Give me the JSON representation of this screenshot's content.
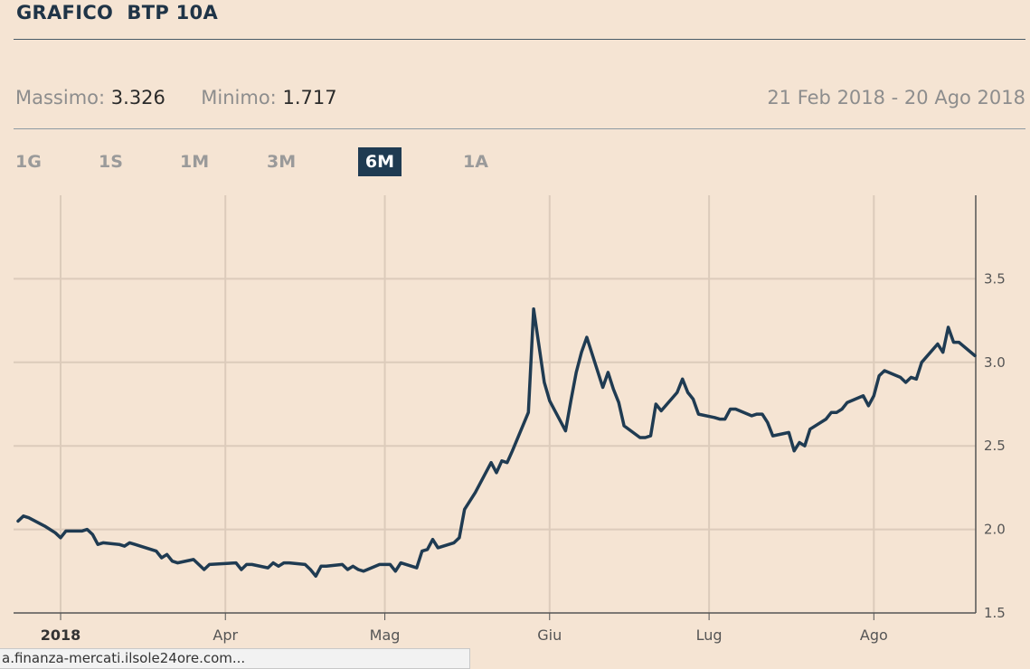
{
  "header": {
    "title": "GRAFICO  BTP 10A"
  },
  "stats": {
    "max_label": "Massimo:",
    "max_value": "3.326",
    "min_label": "Minimo:",
    "min_value": "1.717",
    "date_range": "21 Feb 2018 - 20 Ago 2018"
  },
  "periods": [
    {
      "label": "1G",
      "active": false
    },
    {
      "label": "1S",
      "active": false
    },
    {
      "label": "1M",
      "active": false
    },
    {
      "label": "3M",
      "active": false
    },
    {
      "label": "6M",
      "active": true
    },
    {
      "label": "1A",
      "active": false
    }
  ],
  "colors": {
    "background": "#f5e4d3",
    "line": "#1f3b52",
    "grid": "#dccbbb",
    "active_tab": "#1f3b52"
  },
  "status_bar": {
    "text": "a.finanza-mercati.ilsole24ore.com..."
  },
  "chart_data": {
    "type": "line",
    "title": "GRAFICO  BTP 10A",
    "xlabel": "",
    "ylabel": "",
    "x_range": [
      "2018-02-21",
      "2018-08-20"
    ],
    "ylim": [
      1.5,
      4.0
    ],
    "y_ticks": [
      1.5,
      2.0,
      2.5,
      3.0,
      3.5
    ],
    "y_tick_labels": [
      "1.5",
      "2.0",
      "2.5",
      "3.0",
      "3.5"
    ],
    "x_ticks": [
      {
        "date": "2018-03-01",
        "label": "2018",
        "bold": true
      },
      {
        "date": "2018-04-01",
        "label": "Apr",
        "bold": false
      },
      {
        "date": "2018-05-01",
        "label": "Mag",
        "bold": false
      },
      {
        "date": "2018-06-01",
        "label": "Giu",
        "bold": false
      },
      {
        "date": "2018-07-01",
        "label": "Lug",
        "bold": false
      },
      {
        "date": "2018-08-01",
        "label": "Ago",
        "bold": false
      }
    ],
    "grid": true,
    "y_axis_position": "right",
    "series": [
      {
        "x": [
          "2018-02-21",
          "2018-02-22",
          "2018-02-23",
          "2018-02-26",
          "2018-02-27",
          "2018-02-28",
          "2018-03-01",
          "2018-03-02",
          "2018-03-05",
          "2018-03-06",
          "2018-03-07",
          "2018-03-08",
          "2018-03-09",
          "2018-03-12",
          "2018-03-13",
          "2018-03-14",
          "2018-03-15",
          "2018-03-16",
          "2018-03-19",
          "2018-03-20",
          "2018-03-21",
          "2018-03-22",
          "2018-03-23",
          "2018-03-26",
          "2018-03-27",
          "2018-03-28",
          "2018-03-29",
          "2018-04-03",
          "2018-04-04",
          "2018-04-05",
          "2018-04-06",
          "2018-04-09",
          "2018-04-10",
          "2018-04-11",
          "2018-04-12",
          "2018-04-13",
          "2018-04-16",
          "2018-04-17",
          "2018-04-18",
          "2018-04-19",
          "2018-04-20",
          "2018-04-23",
          "2018-04-24",
          "2018-04-25",
          "2018-04-26",
          "2018-04-27",
          "2018-04-30",
          "2018-05-02",
          "2018-05-03",
          "2018-05-04",
          "2018-05-07",
          "2018-05-08",
          "2018-05-09",
          "2018-05-10",
          "2018-05-11",
          "2018-05-14",
          "2018-05-15",
          "2018-05-16",
          "2018-05-17",
          "2018-05-18",
          "2018-05-21",
          "2018-05-22",
          "2018-05-23",
          "2018-05-24",
          "2018-05-25",
          "2018-05-28",
          "2018-05-29",
          "2018-05-30",
          "2018-05-31",
          "2018-06-01",
          "2018-06-04",
          "2018-06-05",
          "2018-06-06",
          "2018-06-07",
          "2018-06-08",
          "2018-06-11",
          "2018-06-12",
          "2018-06-13",
          "2018-06-14",
          "2018-06-15",
          "2018-06-18",
          "2018-06-19",
          "2018-06-20",
          "2018-06-21",
          "2018-06-22",
          "2018-06-25",
          "2018-06-26",
          "2018-06-27",
          "2018-06-28",
          "2018-06-29",
          "2018-07-02",
          "2018-07-03",
          "2018-07-04",
          "2018-07-05",
          "2018-07-06",
          "2018-07-09",
          "2018-07-10",
          "2018-07-11",
          "2018-07-12",
          "2018-07-13",
          "2018-07-16",
          "2018-07-17",
          "2018-07-18",
          "2018-07-19",
          "2018-07-20",
          "2018-07-23",
          "2018-07-24",
          "2018-07-25",
          "2018-07-26",
          "2018-07-27",
          "2018-07-30",
          "2018-07-31",
          "2018-08-01",
          "2018-08-02",
          "2018-08-03",
          "2018-08-06",
          "2018-08-07",
          "2018-08-08",
          "2018-08-09",
          "2018-08-10",
          "2018-08-13",
          "2018-08-14",
          "2018-08-15",
          "2018-08-16",
          "2018-08-17",
          "2018-08-20"
        ],
        "y": [
          2.05,
          2.08,
          2.07,
          2.02,
          2.0,
          1.98,
          1.95,
          1.99,
          1.99,
          2.0,
          1.97,
          1.91,
          1.92,
          1.91,
          1.9,
          1.92,
          1.91,
          1.9,
          1.87,
          1.83,
          1.85,
          1.81,
          1.8,
          1.82,
          1.79,
          1.76,
          1.79,
          1.8,
          1.76,
          1.79,
          1.79,
          1.77,
          1.8,
          1.78,
          1.8,
          1.8,
          1.79,
          1.76,
          1.72,
          1.78,
          1.78,
          1.79,
          1.76,
          1.78,
          1.76,
          1.75,
          1.79,
          1.79,
          1.75,
          1.8,
          1.77,
          1.87,
          1.88,
          1.94,
          1.89,
          1.92,
          1.95,
          2.12,
          2.17,
          2.22,
          2.4,
          2.34,
          2.41,
          2.4,
          2.47,
          2.7,
          3.32,
          3.1,
          2.88,
          2.77,
          2.59,
          2.77,
          2.94,
          3.06,
          3.15,
          2.85,
          2.94,
          2.84,
          2.76,
          2.62,
          2.55,
          2.55,
          2.56,
          2.75,
          2.71,
          2.82,
          2.9,
          2.82,
          2.78,
          2.69,
          2.67,
          2.66,
          2.66,
          2.72,
          2.72,
          2.68,
          2.69,
          2.69,
          2.64,
          2.56,
          2.58,
          2.47,
          2.52,
          2.5,
          2.6,
          2.66,
          2.7,
          2.7,
          2.72,
          2.76,
          2.8,
          2.74,
          2.8,
          2.92,
          2.95,
          2.91,
          2.88,
          2.91,
          2.9,
          3.0,
          3.11,
          3.06,
          3.21,
          3.12,
          3.12,
          3.04
        ]
      }
    ]
  }
}
